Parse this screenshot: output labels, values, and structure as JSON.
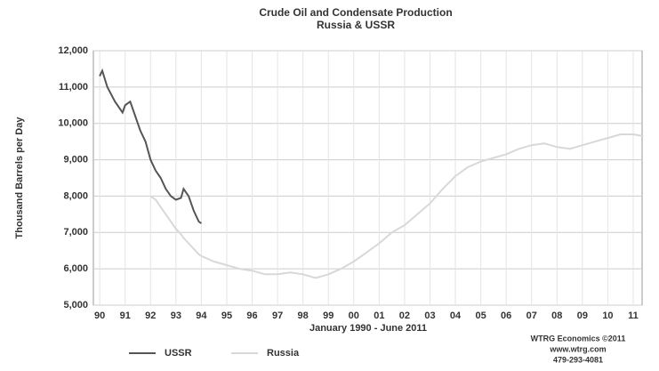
{
  "chart_data": {
    "type": "line",
    "title": "Crude Oil and Condensate Production",
    "subtitle": "Russia & USSR",
    "y_label": "Thousand Barrels per Day",
    "x_label": "January 1990 - June 2011",
    "annotations": [
      "WTRG Economics ©2011",
      "www.wtrg.com",
      "479-293-4081"
    ],
    "x": [
      1990.0,
      1990.1,
      1990.3,
      1990.6,
      1990.9,
      1991.0,
      1991.2,
      1991.4,
      1991.6,
      1991.8,
      1992.0,
      1992.2,
      1992.4,
      1992.6,
      1992.8,
      1993.0,
      1993.2,
      1993.3,
      1993.5,
      1993.7,
      1993.9,
      1994.0,
      1994.5,
      1995,
      1995.5,
      1996,
      1996.5,
      1997,
      1997.5,
      1998,
      1998.5,
      1999,
      1999.5,
      2000,
      2000.5,
      2001,
      2001.5,
      2002,
      2002.5,
      2003,
      2003.5,
      2004,
      2004.5,
      2005,
      2005.5,
      2006,
      2006.5,
      2007,
      2007.5,
      2008,
      2008.5,
      2009,
      2009.5,
      2010,
      2010.5,
      2011,
      2011.4
    ],
    "series": [
      {
        "name": "USSR",
        "color": "#555555",
        "values": [
          11300,
          11450,
          11000,
          10600,
          10300,
          10500,
          10600,
          10200,
          9800,
          9500,
          9000,
          8700,
          8500,
          8200,
          8000,
          7900,
          7950,
          8200,
          8000,
          7600,
          7300,
          7250,
          null,
          null,
          null,
          null,
          null,
          null,
          null,
          null,
          null,
          null,
          null,
          null,
          null,
          null,
          null,
          null,
          null,
          null,
          null,
          null,
          null,
          null,
          null,
          null,
          null,
          null,
          null,
          null,
          null,
          null,
          null,
          null,
          null,
          null,
          null
        ]
      },
      {
        "name": "Russia",
        "color": "#d8d8d8",
        "values": [
          null,
          null,
          null,
          null,
          null,
          null,
          null,
          null,
          null,
          null,
          8000,
          7900,
          7700,
          7500,
          7300,
          7100,
          6950,
          6850,
          6700,
          6550,
          6400,
          6350,
          6200,
          6100,
          6000,
          5950,
          5850,
          5850,
          5900,
          5850,
          5750,
          5850,
          6000,
          6200,
          6450,
          6700,
          7000,
          7200,
          7500,
          7800,
          8200,
          8550,
          8800,
          8950,
          9050,
          9150,
          9300,
          9400,
          9450,
          9350,
          9300,
          9400,
          9500,
          9600,
          9700,
          9700,
          9650
        ]
      }
    ],
    "xlim": [
      1989.75,
      2011.35
    ],
    "ylim": [
      5000,
      12000
    ],
    "xticks": [
      {
        "value": 1990,
        "label": "90"
      },
      {
        "value": 1991,
        "label": "91"
      },
      {
        "value": 1992,
        "label": "92"
      },
      {
        "value": 1993,
        "label": "93"
      },
      {
        "value": 1994,
        "label": "94"
      },
      {
        "value": 1995,
        "label": "95"
      },
      {
        "value": 1996,
        "label": "96"
      },
      {
        "value": 1997,
        "label": "97"
      },
      {
        "value": 1998,
        "label": "98"
      },
      {
        "value": 1999,
        "label": "99"
      },
      {
        "value": 2000,
        "label": "00"
      },
      {
        "value": 2001,
        "label": "01"
      },
      {
        "value": 2002,
        "label": "02"
      },
      {
        "value": 2003,
        "label": "03"
      },
      {
        "value": 2004,
        "label": "04"
      },
      {
        "value": 2005,
        "label": "05"
      },
      {
        "value": 2006,
        "label": "06"
      },
      {
        "value": 2007,
        "label": "07"
      },
      {
        "value": 2008,
        "label": "08"
      },
      {
        "value": 2009,
        "label": "09"
      },
      {
        "value": 2010,
        "label": "10"
      },
      {
        "value": 2011,
        "label": "11"
      }
    ],
    "yticks": [
      {
        "value": 5000,
        "label": "5,000"
      },
      {
        "value": 6000,
        "label": "6,000"
      },
      {
        "value": 7000,
        "label": "7,000"
      },
      {
        "value": 8000,
        "label": "8,000"
      },
      {
        "value": 9000,
        "label": "9,000"
      },
      {
        "value": 10000,
        "label": "10,000"
      },
      {
        "value": 11000,
        "label": "11,000"
      },
      {
        "value": 12000,
        "label": "12,000"
      }
    ],
    "grid": true
  }
}
